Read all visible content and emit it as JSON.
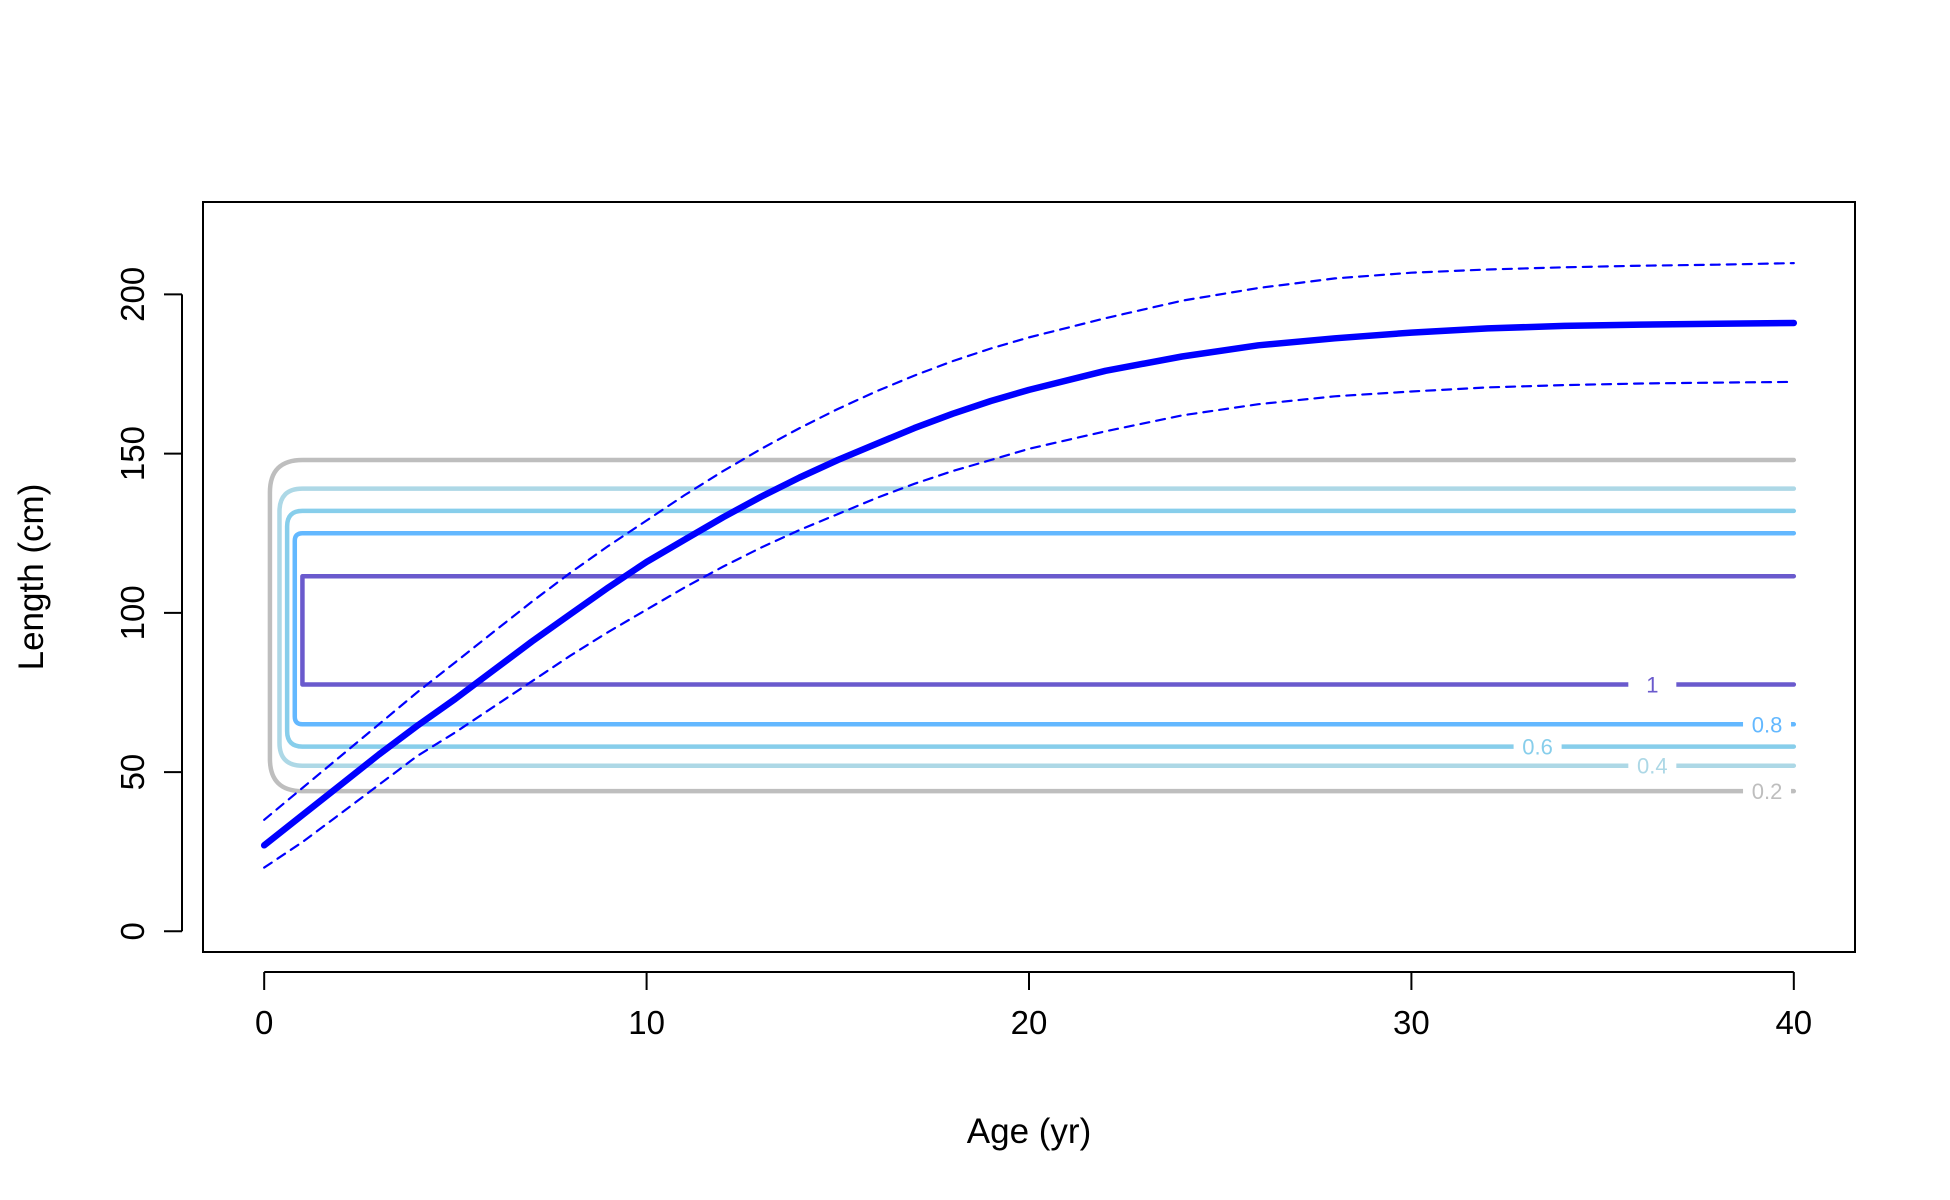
{
  "chart_data": {
    "type": "line",
    "title": "",
    "xlabel": "Age (yr)",
    "ylabel": "Length (cm)",
    "xlim": [
      -1.6,
      41.6
    ],
    "ylim": [
      -6.5,
      229
    ],
    "xticks": [
      0,
      10,
      20,
      30,
      40
    ],
    "yticks": [
      0,
      50,
      100,
      150,
      200
    ],
    "grid": false,
    "legend": "none",
    "colors": {
      "growth": "#0000ff",
      "axis": "#000000"
    },
    "series": [
      {
        "style": "solid-thick",
        "color": "#0000ff",
        "x": [
          0,
          1,
          2,
          3,
          4,
          5,
          6,
          7,
          8,
          9,
          10,
          11,
          12,
          13,
          14,
          15,
          16,
          17,
          18,
          19,
          20,
          22,
          24,
          26,
          28,
          30,
          32,
          34,
          36,
          38,
          40
        ],
        "y": [
          27,
          36.5,
          46,
          55.5,
          64.5,
          73,
          82,
          91,
          99.5,
          108,
          116,
          123,
          130,
          136.5,
          142.5,
          148,
          153,
          158,
          162.5,
          166.5,
          170,
          176,
          180.5,
          184,
          186.2,
          188,
          189.3,
          190.1,
          190.5,
          190.8,
          191
        ]
      },
      {
        "style": "dashed",
        "color": "#0000ff",
        "x": [
          0,
          1,
          2,
          3,
          4,
          5,
          6,
          7,
          8,
          9,
          10,
          11,
          12,
          13,
          14,
          15,
          16,
          17,
          18,
          19,
          20,
          22,
          24,
          26,
          28,
          30,
          32,
          34,
          36,
          38,
          40
        ],
        "y": [
          35,
          45,
          55,
          65,
          75,
          84.5,
          94,
          103.5,
          112.5,
          121,
          129,
          137,
          144.5,
          151.5,
          158,
          164,
          169.5,
          174.5,
          179,
          183,
          186.5,
          192.5,
          198,
          202,
          205,
          206.8,
          207.8,
          208.5,
          209,
          209.3,
          209.8
        ]
      },
      {
        "style": "dashed",
        "color": "#0000ff",
        "x": [
          0,
          1,
          2,
          3,
          4,
          5,
          6,
          7,
          8,
          9,
          10,
          11,
          12,
          13,
          14,
          15,
          16,
          17,
          18,
          19,
          20,
          22,
          24,
          26,
          28,
          30,
          32,
          34,
          36,
          38,
          40
        ],
        "y": [
          20,
          28,
          37,
          46,
          55,
          62.5,
          70.5,
          78.5,
          86.5,
          94,
          101,
          108,
          114.5,
          120.5,
          126,
          131,
          136,
          140.5,
          144.5,
          148,
          151.5,
          157,
          162,
          165.5,
          168,
          169.5,
          170.8,
          171.5,
          172,
          172.3,
          172.5
        ]
      }
    ],
    "contours": [
      {
        "label": "0.2",
        "color": "#bebebe",
        "low": 44,
        "high": 148,
        "left": 0.15,
        "label_x": 39.3
      },
      {
        "label": "0.4",
        "color": "#add8e6",
        "low": 52,
        "high": 139,
        "left": 0.4,
        "label_x": 36.3
      },
      {
        "label": "0.6",
        "color": "#87ceeb",
        "low": 58,
        "high": 132,
        "left": 0.6,
        "label_x": 33.3
      },
      {
        "label": "0.8",
        "color": "#63b8ff",
        "low": 65,
        "high": 125,
        "left": 0.8,
        "label_x": 39.3
      },
      {
        "label": "1",
        "color": "#6a5acd",
        "low": 77.5,
        "high": 111.5,
        "left": 1.0,
        "label_x": 36.3
      }
    ]
  }
}
